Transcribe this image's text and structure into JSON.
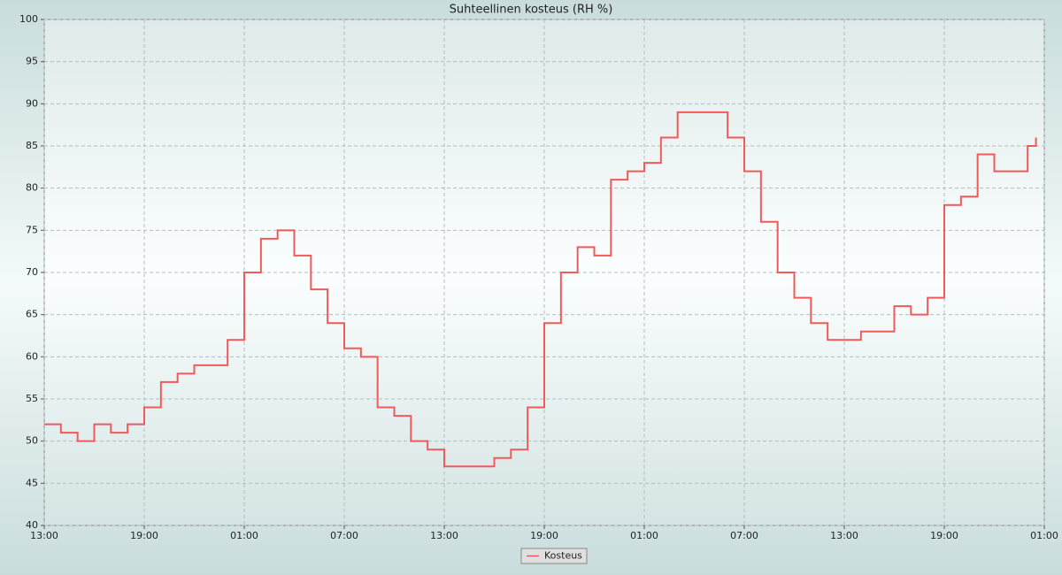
{
  "chart_data": {
    "type": "line",
    "step": "post",
    "title": "Suhteellinen kosteus (RH %)",
    "x": [
      0,
      1,
      2,
      3,
      4,
      5,
      6,
      7,
      8,
      9,
      10,
      11,
      12,
      13,
      14,
      15,
      16,
      17,
      18,
      19,
      20,
      21,
      22,
      23,
      24,
      25,
      26,
      27,
      28,
      29,
      30,
      31,
      32,
      33,
      34,
      35,
      36,
      37,
      38,
      39,
      40,
      41,
      42,
      43,
      44,
      45,
      46,
      47,
      48,
      49,
      50,
      51,
      52,
      53,
      54,
      55,
      56,
      57,
      58,
      59,
      59.5
    ],
    "series": [
      {
        "name": "Kosteus",
        "color": "#f05a5a",
        "values": [
          52,
          51,
          50,
          52,
          51,
          52,
          54,
          57,
          58,
          59,
          59,
          62,
          70,
          74,
          75,
          72,
          68,
          64,
          61,
          60,
          54,
          53,
          50,
          49,
          47,
          47,
          47,
          48,
          49,
          54,
          64,
          70,
          73,
          72,
          81,
          82,
          83,
          86,
          89,
          89,
          89,
          86,
          82,
          76,
          70,
          67,
          64,
          62,
          62,
          63,
          63,
          66,
          65,
          67,
          78,
          79,
          84,
          82,
          82,
          85,
          86
        ]
      }
    ],
    "xlim": [
      0,
      60
    ],
    "xticks": [
      {
        "value": 0,
        "label": "13:00"
      },
      {
        "value": 6,
        "label": "19:00"
      },
      {
        "value": 12,
        "label": "01:00"
      },
      {
        "value": 18,
        "label": "07:00"
      },
      {
        "value": 24,
        "label": "13:00"
      },
      {
        "value": 30,
        "label": "19:00"
      },
      {
        "value": 36,
        "label": "01:00"
      },
      {
        "value": 42,
        "label": "07:00"
      },
      {
        "value": 48,
        "label": "13:00"
      },
      {
        "value": 54,
        "label": "19:00"
      },
      {
        "value": 60,
        "label": "01:00"
      }
    ],
    "ylim": [
      40,
      100
    ],
    "yticks": [
      40,
      45,
      50,
      55,
      60,
      65,
      70,
      75,
      80,
      85,
      90,
      95,
      100
    ],
    "grid": true,
    "legend": "bottom"
  }
}
